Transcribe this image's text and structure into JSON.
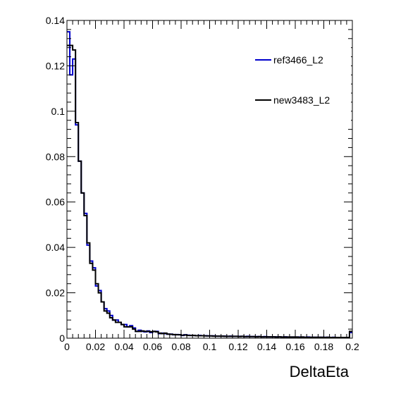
{
  "chart_data": {
    "type": "line",
    "step": true,
    "xlabel": "DeltaEta",
    "ylabel": "",
    "xlim": [
      0,
      0.2
    ],
    "ylim": [
      0,
      0.14
    ],
    "x_ticks": [
      "0",
      "0.02",
      "0.04",
      "0.06",
      "0.08",
      "0.1",
      "0.12",
      "0.14",
      "0.16",
      "0.18",
      "0.2"
    ],
    "y_ticks": [
      "0",
      "0.02",
      "0.04",
      "0.06",
      "0.08",
      "0.1",
      "0.12",
      "0.14"
    ],
    "grid": false,
    "legend_position": "top-right",
    "bin_width": 0.002,
    "series": [
      {
        "name": "ref3466_L2",
        "color": "#0000cc",
        "values": [
          0.135,
          0.116,
          0.123,
          0.094,
          0.078,
          0.064,
          0.055,
          0.041,
          0.034,
          0.031,
          0.023,
          0.021,
          0.016,
          0.013,
          0.012,
          0.01,
          0.008,
          0.008,
          0.007,
          0.006,
          0.006,
          0.005,
          0.0055,
          0.0045,
          0.003,
          0.0035,
          0.003,
          0.0028,
          0.0032,
          0.0025,
          0.003,
          0.003,
          0.002,
          0.0022,
          0.002,
          0.0018,
          0.0018,
          0.0015,
          0.0016,
          0.0015,
          0.0012,
          0.0015,
          0.0013,
          0.0012,
          0.0012,
          0.0011,
          0.0012,
          0.0011,
          0.0011,
          0.001,
          0.001,
          0.001,
          0.0009,
          0.0009,
          0.0009,
          0.0009,
          0.0008,
          0.0009,
          0.0008,
          0.0008,
          0.0008,
          0.0008,
          0.0007,
          0.0008,
          0.0007,
          0.0007,
          0.0007,
          0.0007,
          0.0006,
          0.0007,
          0.0006,
          0.0006,
          0.0006,
          0.0006,
          0.0006,
          0.0005,
          0.0006,
          0.0005,
          0.0005,
          0.0005,
          0.0005,
          0.0005,
          0.0005,
          0.0004,
          0.0005,
          0.0004,
          0.0004,
          0.0004,
          0.0004,
          0.0004,
          0.0004,
          0.0004,
          0.0003,
          0.0004,
          0.0003,
          0.0003,
          0.0003,
          0.0003,
          0.0003,
          0.0025
        ]
      },
      {
        "name": "new3483_L2",
        "color": "#000000",
        "values": [
          0.129,
          0.129,
          0.127,
          0.095,
          0.078,
          0.064,
          0.054,
          0.042,
          0.033,
          0.03,
          0.024,
          0.02,
          0.016,
          0.012,
          0.011,
          0.009,
          0.008,
          0.007,
          0.007,
          0.006,
          0.005,
          0.005,
          0.005,
          0.004,
          0.003,
          0.003,
          0.0032,
          0.003,
          0.003,
          0.0028,
          0.003,
          0.0028,
          0.0022,
          0.002,
          0.0022,
          0.0018,
          0.0017,
          0.0016,
          0.0015,
          0.0015,
          0.0013,
          0.0014,
          0.0012,
          0.0012,
          0.0012,
          0.0011,
          0.0011,
          0.0011,
          0.001,
          0.001,
          0.001,
          0.0009,
          0.0009,
          0.0009,
          0.0009,
          0.0008,
          0.0008,
          0.0008,
          0.0008,
          0.0008,
          0.0007,
          0.0008,
          0.0007,
          0.0007,
          0.0007,
          0.0007,
          0.0006,
          0.0007,
          0.0006,
          0.0006,
          0.0006,
          0.0006,
          0.0006,
          0.0005,
          0.0006,
          0.0005,
          0.0005,
          0.0005,
          0.0005,
          0.0005,
          0.0005,
          0.0004,
          0.0005,
          0.0004,
          0.0004,
          0.0004,
          0.0004,
          0.0004,
          0.0004,
          0.0004,
          0.0003,
          0.0004,
          0.0003,
          0.0003,
          0.0003,
          0.0003,
          0.0003,
          0.0003,
          0.0003,
          0.003
        ]
      }
    ]
  }
}
